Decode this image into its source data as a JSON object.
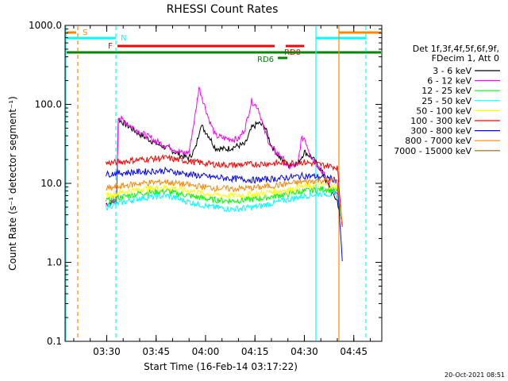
{
  "chart_data": {
    "type": "line",
    "title": "RHESSI Count Rates",
    "xlabel": "Start Time (16-Feb-14 03:17:22)",
    "ylabel": "Count Rate (s⁻¹ detector segment⁻¹)",
    "y_scale": "log",
    "ylim": [
      0.1,
      1000
    ],
    "xlim": [
      "03:17:22",
      "04:53:30"
    ],
    "x_ticks": [
      "03:30",
      "03:45",
      "04:00",
      "04:15",
      "04:30",
      "04:45"
    ],
    "y_ticks": [
      "0.1",
      "1.0",
      "10.0",
      "100.0",
      "1000.0"
    ],
    "legend_header": [
      "Det 1f,3f,4f,5f,6f,9f,",
      "FDecim 1, Att 0"
    ],
    "legend_position": "right",
    "series": [
      {
        "name": "3 - 6 keV",
        "color": "#000000",
        "x": [
          "03:29:45",
          "03:33:00",
          "03:33:30",
          "03:36:00",
          "03:40:00",
          "03:45:00",
          "03:50:00",
          "03:53:00",
          "03:55:00",
          "03:57:00",
          "03:58:30",
          "04:01:00",
          "04:03:00",
          "04:06:00",
          "04:10:00",
          "04:12:00",
          "04:14:00",
          "04:16:00",
          "04:18:00",
          "04:20:00",
          "04:23:00",
          "04:25:00",
          "04:28:00",
          "04:30:00",
          "04:32:00",
          "04:35:00",
          "04:38:00",
          "04:40:00",
          "04:41:30"
        ],
        "y": [
          5.5,
          6,
          65,
          55,
          42,
          32,
          26,
          22,
          21,
          28,
          55,
          40,
          28,
          27,
          30,
          31,
          50,
          58,
          52,
          30,
          20,
          17,
          18,
          25,
          22,
          15,
          8,
          6,
          3
        ]
      },
      {
        "name": "6 - 12 keV",
        "color": "#ff00ff",
        "x": [
          "03:29:45",
          "03:33:00",
          "03:33:30",
          "03:36:00",
          "03:40:00",
          "03:45:00",
          "03:50:00",
          "03:53:00",
          "03:55:00",
          "03:57:00",
          "03:58:00",
          "04:01:00",
          "04:03:00",
          "04:06:00",
          "04:10:00",
          "04:12:00",
          "04:14:00",
          "04:16:00",
          "04:18:00",
          "04:20:00",
          "04:23:00",
          "04:25:00",
          "04:28:00",
          "04:29:00",
          "04:30:00",
          "04:32:00",
          "04:35:00",
          "04:38:00",
          "04:40:00",
          "04:41:30"
        ],
        "y": [
          5.5,
          6,
          70,
          58,
          45,
          34,
          28,
          24,
          25,
          80,
          165,
          65,
          40,
          37,
          36,
          50,
          110,
          90,
          45,
          28,
          22,
          16,
          17,
          35,
          38,
          22,
          15,
          9,
          7,
          3
        ]
      },
      {
        "name": "12 - 25 keV",
        "color": "#00ff00",
        "x": [
          "03:29:45",
          "03:33:00",
          "03:40:00",
          "03:48:00",
          "03:55:00",
          "04:02:00",
          "04:08:00",
          "04:15:00",
          "04:22:00",
          "04:30:00",
          "04:36:00",
          "04:40:00",
          "04:41:30"
        ],
        "y": [
          6,
          6.5,
          7.5,
          8,
          7,
          6.2,
          6,
          6.3,
          7,
          8,
          8.5,
          8,
          3
        ]
      },
      {
        "name": "25 - 50 keV",
        "color": "#00ffff",
        "x": [
          "03:29:45",
          "03:33:00",
          "03:40:00",
          "03:48:00",
          "03:55:00",
          "04:02:00",
          "04:08:00",
          "04:15:00",
          "04:22:00",
          "04:30:00",
          "04:36:00",
          "04:40:00",
          "04:41:30"
        ],
        "y": [
          5,
          5.5,
          6.5,
          7,
          5.8,
          5,
          4.7,
          5,
          5.8,
          7,
          7.5,
          7,
          3
        ]
      },
      {
        "name": "50 - 100 keV",
        "color": "#ffff00",
        "x": [
          "03:29:45",
          "03:33:00",
          "03:40:00",
          "03:48:00",
          "03:55:00",
          "04:02:00",
          "04:08:00",
          "04:15:00",
          "04:22:00",
          "04:30:00",
          "04:36:00",
          "04:40:00",
          "04:41:30"
        ],
        "y": [
          7,
          7.5,
          8.5,
          9,
          8,
          7.2,
          7,
          7.3,
          8,
          9,
          9.5,
          9,
          3
        ]
      },
      {
        "name": "100 - 300 keV",
        "color": "#ff0000",
        "x": [
          "03:29:45",
          "03:33:00",
          "03:40:00",
          "03:48:00",
          "03:55:00",
          "04:02:00",
          "04:08:00",
          "04:15:00",
          "04:22:00",
          "04:30:00",
          "04:36:00",
          "04:40:00",
          "04:41:30"
        ],
        "y": [
          18,
          18.5,
          20,
          21,
          19,
          17.5,
          17,
          17.5,
          18,
          18.5,
          17,
          16,
          3
        ]
      },
      {
        "name": "300 - 800 keV",
        "color": "#0000ff",
        "x": [
          "03:29:45",
          "03:33:00",
          "03:40:00",
          "03:48:00",
          "03:55:00",
          "04:02:00",
          "04:08:00",
          "04:15:00",
          "04:22:00",
          "04:30:00",
          "04:36:00",
          "04:40:00",
          "04:41:30"
        ],
        "y": [
          13,
          13.5,
          14,
          14.5,
          13,
          12,
          11.5,
          11,
          11.5,
          12.5,
          12,
          11,
          1
        ]
      },
      {
        "name": "800 - 7000 keV",
        "color": "#ff8800",
        "x": [
          "03:29:45",
          "03:33:00",
          "03:40:00",
          "03:48:00",
          "03:55:00",
          "04:02:00",
          "04:08:00",
          "04:15:00",
          "04:22:00",
          "04:30:00",
          "04:36:00",
          "04:40:00",
          "04:41:30"
        ],
        "y": [
          8.5,
          9,
          10,
          10.5,
          9.5,
          8.8,
          8.5,
          8.8,
          9.5,
          10.5,
          11,
          10.5,
          3
        ]
      },
      {
        "name": "7000 - 15000 keV",
        "color": "#996600",
        "x": [],
        "y": []
      }
    ],
    "flags": {
      "attenuator_S": {
        "label": "S",
        "color": "#ff8800"
      },
      "night_N": {
        "label": "N",
        "color": "#00ffff"
      },
      "flare_F": {
        "label": "F",
        "color": "#ff0000"
      },
      "rd0": {
        "label": "RD0",
        "color": "#ff0000"
      },
      "rd6": {
        "label": "RD6",
        "color": "#008800"
      }
    },
    "timestamp": "20-Oct-2021 08:51"
  }
}
